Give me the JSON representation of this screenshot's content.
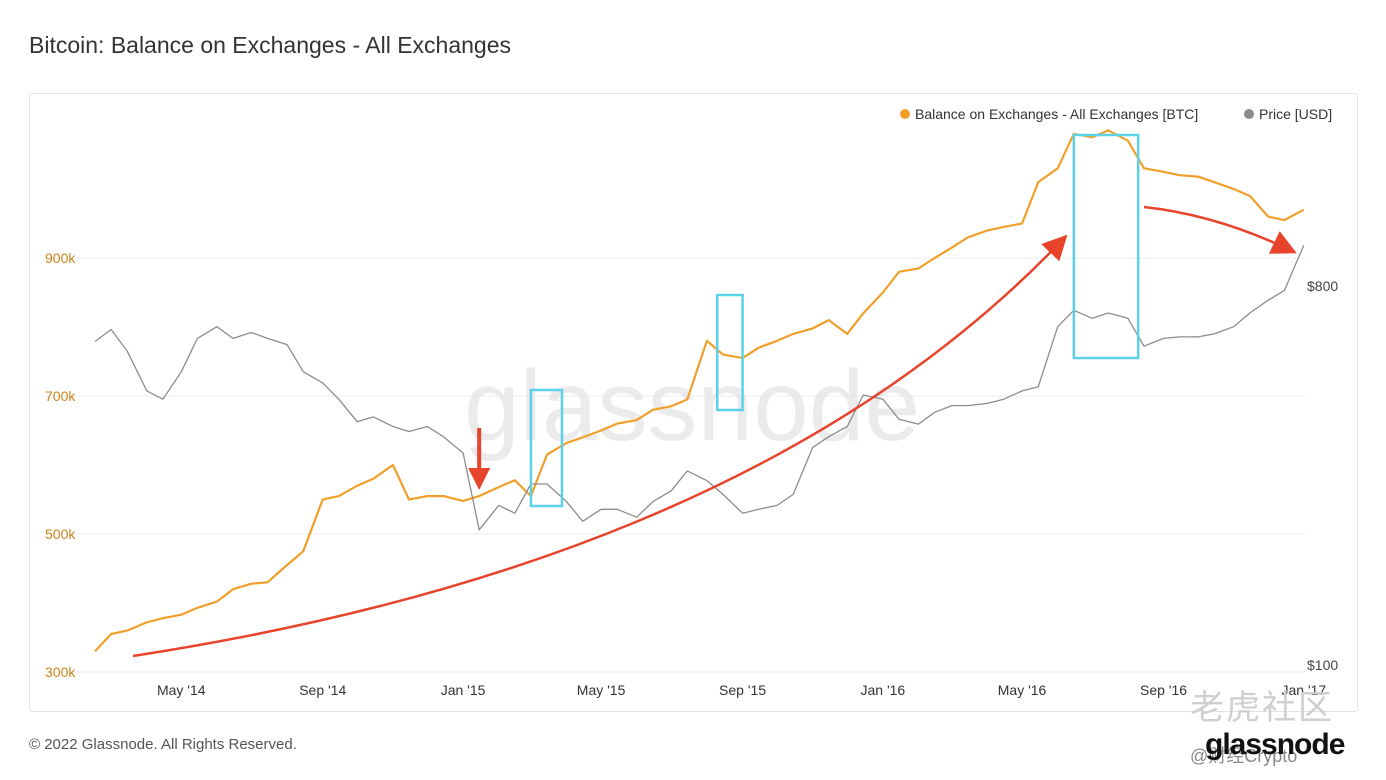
{
  "header": {
    "title": "Bitcoin: Balance on Exchanges - All Exchanges"
  },
  "footer": {
    "copyright": "© 2022 Glassnode. All Rights Reserved."
  },
  "watermarks": {
    "center": "glassnode",
    "corner_brand": "glassnode",
    "corner_cn": "老虎社区",
    "corner_handle": "@财经Crypto"
  },
  "colors": {
    "balance": "#f0a02a",
    "price": "#8c8c8c",
    "highlight": "#5bd2ea",
    "arrow": "#e8432b"
  },
  "chart_data": {
    "type": "line",
    "legend_position": "top-right",
    "grid": "horizontal",
    "x_ticks": [
      "May '14",
      "Sep '14",
      "Jan '15",
      "May '15",
      "Sep '15",
      "Jan '16",
      "May '16",
      "Sep '16",
      "Jan '17"
    ],
    "y_left_ticks": [
      "300k",
      "500k",
      "700k",
      "900k"
    ],
    "y_right_ticks": [
      "$100",
      "$800"
    ],
    "y_left_range": [
      300000,
      1100000
    ],
    "series": [
      {
        "name": "Balance on Exchanges - All Exchanges [BTC]",
        "axis": "left",
        "x": [
          "2014-02-15",
          "2014-03-01",
          "2014-03-15",
          "2014-04-01",
          "2014-04-15",
          "2014-05-01",
          "2014-05-15",
          "2014-06-01",
          "2014-06-15",
          "2014-07-01",
          "2014-07-15",
          "2014-08-01",
          "2014-08-15",
          "2014-09-01",
          "2014-09-15",
          "2014-10-01",
          "2014-10-15",
          "2014-11-01",
          "2014-11-15",
          "2014-12-01",
          "2014-12-15",
          "2015-01-01",
          "2015-01-15",
          "2015-02-01",
          "2015-02-15",
          "2015-03-01",
          "2015-03-15",
          "2015-04-01",
          "2015-04-15",
          "2015-05-01",
          "2015-05-15",
          "2015-06-01",
          "2015-06-15",
          "2015-07-01",
          "2015-07-15",
          "2015-08-01",
          "2015-08-15",
          "2015-09-01",
          "2015-09-15",
          "2015-10-01",
          "2015-10-15",
          "2015-11-01",
          "2015-11-15",
          "2015-12-01",
          "2015-12-15",
          "2016-01-01",
          "2016-01-15",
          "2016-02-01",
          "2016-02-15",
          "2016-03-01",
          "2016-03-15",
          "2016-04-01",
          "2016-04-15",
          "2016-05-01",
          "2016-05-15",
          "2016-06-01",
          "2016-06-15",
          "2016-07-01",
          "2016-07-15",
          "2016-08-01",
          "2016-08-15",
          "2016-09-01",
          "2016-09-15",
          "2016-10-01",
          "2016-10-15",
          "2016-11-01",
          "2016-11-15",
          "2016-12-01",
          "2016-12-15",
          "2017-01-01"
        ],
        "values": [
          330000,
          355000,
          360000,
          372000,
          378000,
          383000,
          393000,
          402000,
          420000,
          428000,
          430000,
          455000,
          475000,
          550000,
          555000,
          570000,
          580000,
          600000,
          550000,
          555000,
          555000,
          548000,
          555000,
          568000,
          578000,
          555000,
          615000,
          632000,
          640000,
          650000,
          660000,
          665000,
          680000,
          685000,
          695000,
          780000,
          760000,
          755000,
          770000,
          780000,
          790000,
          798000,
          810000,
          790000,
          820000,
          850000,
          880000,
          885000,
          900000,
          915000,
          930000,
          940000,
          945000,
          950000,
          1010000,
          1030000,
          1080000,
          1075000,
          1085000,
          1070000,
          1030000,
          1025000,
          1020000,
          1018000,
          1010000,
          1000000,
          990000,
          960000,
          955000,
          970000
        ]
      },
      {
        "name": "Price [USD]",
        "axis": "right",
        "x": [
          "2014-02-15",
          "2014-03-01",
          "2014-03-15",
          "2014-04-01",
          "2014-04-15",
          "2014-05-01",
          "2014-05-15",
          "2014-06-01",
          "2014-06-15",
          "2014-07-01",
          "2014-07-15",
          "2014-08-01",
          "2014-08-15",
          "2014-09-01",
          "2014-09-15",
          "2014-10-01",
          "2014-10-15",
          "2014-11-01",
          "2014-11-15",
          "2014-12-01",
          "2014-12-15",
          "2015-01-01",
          "2015-01-15",
          "2015-02-01",
          "2015-02-15",
          "2015-03-01",
          "2015-03-15",
          "2015-04-01",
          "2015-04-15",
          "2015-05-01",
          "2015-05-15",
          "2015-06-01",
          "2015-06-15",
          "2015-07-01",
          "2015-07-15",
          "2015-08-01",
          "2015-08-15",
          "2015-09-01",
          "2015-09-15",
          "2015-10-01",
          "2015-10-15",
          "2015-11-01",
          "2015-11-15",
          "2015-12-01",
          "2015-12-15",
          "2016-01-01",
          "2016-01-15",
          "2016-02-01",
          "2016-02-15",
          "2016-03-01",
          "2016-03-15",
          "2016-04-01",
          "2016-04-15",
          "2016-05-01",
          "2016-05-15",
          "2016-06-01",
          "2016-06-15",
          "2016-07-01",
          "2016-07-15",
          "2016-08-01",
          "2016-08-15",
          "2016-09-01",
          "2016-09-15",
          "2016-10-01",
          "2016-10-15",
          "2016-11-01",
          "2016-11-15",
          "2016-12-01",
          "2016-12-15",
          "2017-01-01"
        ],
        "values": [
          590,
          630,
          560,
          450,
          430,
          500,
          600,
          640,
          600,
          620,
          600,
          580,
          500,
          470,
          430,
          380,
          390,
          370,
          360,
          370,
          350,
          320,
          210,
          240,
          230,
          270,
          270,
          245,
          220,
          235,
          235,
          225,
          245,
          260,
          290,
          275,
          255,
          230,
          235,
          240,
          255,
          330,
          350,
          370,
          440,
          430,
          385,
          375,
          400,
          415,
          415,
          420,
          430,
          450,
          460,
          640,
          700,
          670,
          690,
          670,
          575,
          600,
          605,
          605,
          615,
          640,
          690,
          740,
          780,
          1000
        ]
      }
    ],
    "annotations": {
      "boxes": [
        {
          "x_start": "2015-03-01",
          "x_end": "2015-03-28"
        },
        {
          "x_start": "2015-08-10",
          "x_end": "2015-09-01"
        },
        {
          "x_start": "2016-06-15",
          "x_end": "2016-08-10"
        }
      ],
      "down_arrow_at": "2015-01-15",
      "trend_arrow": {
        "from": "2014-03-20",
        "to": "2016-06-05"
      },
      "decline_arrow": {
        "from": "2016-08-15",
        "to": "2016-12-20"
      }
    }
  }
}
